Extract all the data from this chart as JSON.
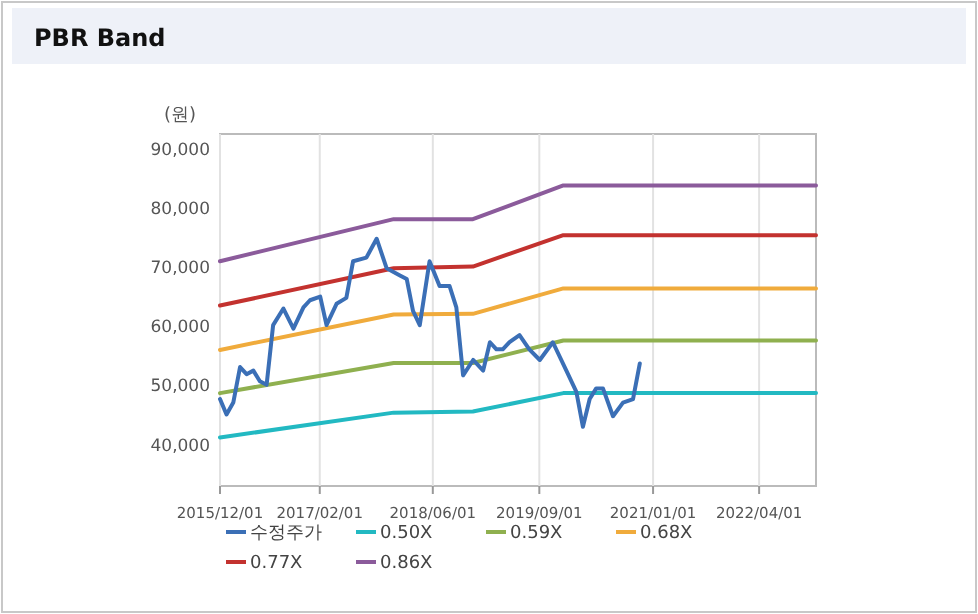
{
  "chart_data": {
    "type": "line",
    "title": "PBR Band",
    "ylabel": "(원)",
    "xlim": [
      "2015-12-01",
      "2022-12-01"
    ],
    "ylim": [
      33000,
      92500
    ],
    "xticks": [
      {
        "value": "2015-12-01",
        "label": "2015/12/01"
      },
      {
        "value": "2017-02-01",
        "label": "2017/02/01"
      },
      {
        "value": "2018-06-01",
        "label": "2018/06/01"
      },
      {
        "value": "2019-09-01",
        "label": "2019/09/01"
      },
      {
        "value": "2021-01-01",
        "label": "2021/01/01"
      },
      {
        "value": "2022-04-01",
        "label": "2022/04/01"
      }
    ],
    "yticks": [
      {
        "value": 40000,
        "label": "40,000"
      },
      {
        "value": 50000,
        "label": "50,000"
      },
      {
        "value": 60000,
        "label": "60,000"
      },
      {
        "value": 70000,
        "label": "70,000"
      },
      {
        "value": 80000,
        "label": "80,000"
      },
      {
        "value": 90000,
        "label": "90,000"
      }
    ],
    "grid": "x",
    "legend": "bottom",
    "marker": "none",
    "line_style": "solid",
    "series": [
      {
        "name": "수정주가",
        "color": "#3b6fb6",
        "x": [
          "2015-12-01",
          "2015-12-29",
          "2016-01-27",
          "2016-02-25",
          "2016-03-24",
          "2016-04-22",
          "2016-05-20",
          "2016-06-18",
          "2016-07-16",
          "2016-08-29",
          "2016-10-11",
          "2016-11-23",
          "2016-12-21",
          "2017-02-03",
          "2017-03-02",
          "2017-04-14",
          "2017-05-26",
          "2017-06-24",
          "2017-08-20",
          "2017-10-03",
          "2017-11-15",
          "2018-01-11",
          "2018-02-09",
          "2018-03-08",
          "2018-04-06",
          "2018-05-18",
          "2018-06-30",
          "2018-08-12",
          "2018-09-10",
          "2018-10-09",
          "2018-11-21",
          "2019-01-03",
          "2019-02-01",
          "2019-03-01",
          "2019-03-28",
          "2019-04-26",
          "2019-06-08",
          "2019-07-20",
          "2019-09-03",
          "2019-10-29",
          "2019-12-26",
          "2020-02-07",
          "2020-03-06",
          "2020-04-04",
          "2020-05-02",
          "2020-05-31",
          "2020-07-13",
          "2020-08-25",
          "2020-10-07",
          "2020-11-05"
        ],
        "values": [
          47700,
          45100,
          47100,
          53100,
          51900,
          52500,
          50700,
          50100,
          60200,
          63000,
          59600,
          63200,
          64400,
          65000,
          60200,
          63800,
          64800,
          71000,
          71600,
          74800,
          69800,
          68600,
          68000,
          62600,
          60200,
          71000,
          66800,
          66800,
          63200,
          51700,
          54300,
          52500,
          57300,
          56100,
          56100,
          57300,
          58500,
          56100,
          54300,
          57300,
          52500,
          48900,
          43000,
          47700,
          49500,
          49500,
          44800,
          47100,
          47700,
          53700
        ]
      },
      {
        "name": "0.50X",
        "color": "#22b9c2",
        "x": [
          "2015-12-01",
          "2017-12-15",
          "2018-11-20",
          "2019-12-13",
          "2022-12-01"
        ],
        "values": [
          41200,
          45400,
          45600,
          48700,
          48700
        ]
      },
      {
        "name": "0.59X",
        "color": "#8fb04f",
        "x": [
          "2015-12-01",
          "2017-12-15",
          "2018-11-20",
          "2019-12-13",
          "2022-12-01"
        ],
        "values": [
          48700,
          53800,
          53800,
          57600,
          57600
        ]
      },
      {
        "name": "0.68X",
        "color": "#f0ab3c",
        "x": [
          "2015-12-01",
          "2017-12-15",
          "2018-11-20",
          "2019-12-13",
          "2022-12-01"
        ],
        "values": [
          56000,
          62000,
          62100,
          66400,
          66400
        ]
      },
      {
        "name": "0.77X",
        "color": "#c3322f",
        "x": [
          "2015-12-01",
          "2017-12-15",
          "2018-11-20",
          "2019-12-13",
          "2022-12-01"
        ],
        "values": [
          63500,
          69800,
          70100,
          75400,
          75400
        ]
      },
      {
        "name": "0.86X",
        "color": "#8b5b9b",
        "x": [
          "2015-12-01",
          "2017-12-15",
          "2018-11-20",
          "2019-12-13",
          "2022-12-01"
        ],
        "values": [
          71000,
          78100,
          78100,
          83800,
          83800
        ]
      }
    ]
  }
}
